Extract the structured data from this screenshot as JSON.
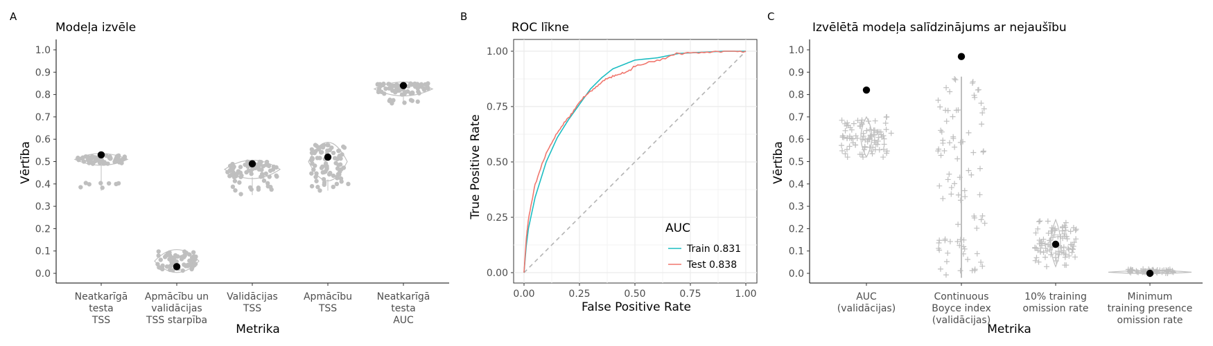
{
  "panels": {
    "a": {
      "letter": "A",
      "title": "Modeļa izvēle",
      "xlabel": "Metrika",
      "ylabel": "Vērtība"
    },
    "b": {
      "letter": "B",
      "title": "ROC līkne",
      "xlabel": "False Positive Rate",
      "ylabel": "True Positive Rate",
      "legend_title": "AUC"
    },
    "c": {
      "letter": "C",
      "title": "Izvēlētā modeļa salīdzinājums ar nejaušību",
      "xlabel": "Metrika",
      "ylabel": "Vērtība"
    }
  },
  "colors": {
    "cloud": "#bfbfbf",
    "point": "#000000",
    "train": "#1cbdc2",
    "test": "#f0766d",
    "diagonal": "#b3b3b3",
    "grid": "#ebebeb"
  },
  "chart_data": [
    {
      "type": "violin-jitter",
      "title": "Modeļa izvēle",
      "xlabel": "Metrika",
      "ylabel": "Vērtība",
      "ylim": [
        0,
        1
      ],
      "yticks": [
        "0.0",
        "0.1",
        "0.2",
        "0.3",
        "0.4",
        "0.5",
        "0.6",
        "0.7",
        "0.8",
        "0.9",
        "1.0"
      ],
      "categories": [
        [
          "Neatkarīgā",
          "testa",
          "TSS"
        ],
        [
          "Apmācību un",
          "validācijas",
          "TSS starpība"
        ],
        [
          "Validācijas",
          "TSS"
        ],
        [
          "Apmācību",
          "TSS"
        ],
        [
          "Neatkarīgā",
          "testa",
          "AUC"
        ]
      ],
      "selected_model_values": [
        0.53,
        0.03,
        0.49,
        0.52,
        0.84
      ],
      "distribution_ranges": [
        [
          0.37,
          0.53
        ],
        [
          0.01,
          0.1
        ],
        [
          0.35,
          0.5
        ],
        [
          0.37,
          0.58
        ],
        [
          0.76,
          0.84
        ]
      ],
      "distribution_centers": [
        0.51,
        0.03,
        0.47,
        0.49,
        0.83
      ]
    },
    {
      "type": "line",
      "title": "ROC līkne",
      "xlabel": "False Positive Rate",
      "ylabel": "True Positive Rate",
      "xlim": [
        0,
        1
      ],
      "ylim": [
        0,
        1
      ],
      "xticks": [
        "0.00",
        "0.25",
        "0.50",
        "0.75",
        "1.00"
      ],
      "yticks": [
        "0.00",
        "0.25",
        "0.50",
        "0.75",
        "1.00"
      ],
      "grid": true,
      "legend_title": "AUC",
      "legend_position": "bottom-right",
      "series": [
        {
          "name": "Train 0.831",
          "x": [
            0,
            0.01,
            0.02,
            0.05,
            0.1,
            0.15,
            0.2,
            0.25,
            0.3,
            0.35,
            0.4,
            0.45,
            0.5,
            0.6,
            0.7,
            0.8,
            0.9,
            1.0
          ],
          "y": [
            0,
            0.12,
            0.2,
            0.34,
            0.5,
            0.61,
            0.69,
            0.76,
            0.83,
            0.88,
            0.92,
            0.94,
            0.96,
            0.97,
            0.99,
            0.995,
            1.0,
            1.0
          ]
        },
        {
          "name": "Test 0.838",
          "x": [
            0,
            0.01,
            0.02,
            0.05,
            0.1,
            0.15,
            0.2,
            0.25,
            0.3,
            0.35,
            0.4,
            0.45,
            0.5,
            0.6,
            0.7,
            0.8,
            0.9,
            1.0
          ],
          "y": [
            0,
            0.15,
            0.24,
            0.4,
            0.54,
            0.63,
            0.7,
            0.77,
            0.82,
            0.86,
            0.89,
            0.9,
            0.93,
            0.96,
            0.99,
            0.995,
            1.0,
            1.0
          ]
        }
      ],
      "reference_line": {
        "x": [
          0,
          1
        ],
        "y": [
          0,
          1
        ]
      }
    },
    {
      "type": "violin-jitter",
      "title": "Izvēlētā modeļa salīdzinājums ar nejaušību",
      "xlabel": "Metrika",
      "ylabel": "Vērtība",
      "ylim": [
        0,
        1
      ],
      "yticks": [
        "0.0",
        "0.1",
        "0.2",
        "0.3",
        "0.4",
        "0.5",
        "0.6",
        "0.7",
        "0.8",
        "0.9",
        "1.0"
      ],
      "categories": [
        [
          "AUC",
          "(validācijas)"
        ],
        [
          "Continuous",
          "Boyce index",
          "(validācijas)"
        ],
        [
          "10% training",
          "omission rate"
        ],
        [
          "Minimum",
          "training presence",
          "omission rate"
        ]
      ],
      "selected_model_values": [
        0.82,
        0.97,
        0.13,
        0.0
      ],
      "null_distribution_ranges": [
        [
          0.52,
          0.7
        ],
        [
          -0.02,
          0.88
        ],
        [
          0.03,
          0.24
        ],
        [
          0.0,
          0.02
        ]
      ],
      "null_distribution_centers": [
        0.61,
        0.4,
        0.1,
        0.0
      ]
    }
  ]
}
